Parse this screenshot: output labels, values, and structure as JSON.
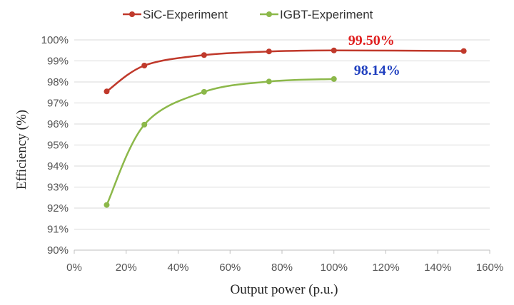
{
  "chart_data": {
    "type": "line",
    "xlabel": "Output power (p.u.)",
    "ylabel": "Efficiency (%)",
    "xlim": [
      0,
      160
    ],
    "ylim": [
      90,
      100
    ],
    "x_ticks": [
      "0%",
      "20%",
      "40%",
      "60%",
      "80%",
      "100%",
      "120%",
      "140%",
      "160%"
    ],
    "y_ticks": [
      "90%",
      "91%",
      "92%",
      "93%",
      "94%",
      "95%",
      "96%",
      "97%",
      "98%",
      "99%",
      "100%"
    ],
    "grid": "horizontal",
    "legend_position": "top",
    "series": [
      {
        "name": "SiC-Experiment",
        "color": "#c0392b",
        "x": [
          12.5,
          27,
          50,
          75,
          100,
          150
        ],
        "y": [
          97.55,
          98.78,
          99.28,
          99.45,
          99.5,
          99.47
        ]
      },
      {
        "name": "IGBT-Experiment",
        "color": "#8cb84a",
        "x": [
          12.5,
          27,
          50,
          75,
          100
        ],
        "y": [
          92.15,
          95.97,
          97.53,
          98.02,
          98.14
        ]
      }
    ],
    "annotations": [
      {
        "text": "99.50%",
        "color": "#e02020",
        "series": 0,
        "point": 4
      },
      {
        "text": "98.14%",
        "color": "#1f3fbf",
        "series": 1,
        "point": 4
      }
    ]
  }
}
